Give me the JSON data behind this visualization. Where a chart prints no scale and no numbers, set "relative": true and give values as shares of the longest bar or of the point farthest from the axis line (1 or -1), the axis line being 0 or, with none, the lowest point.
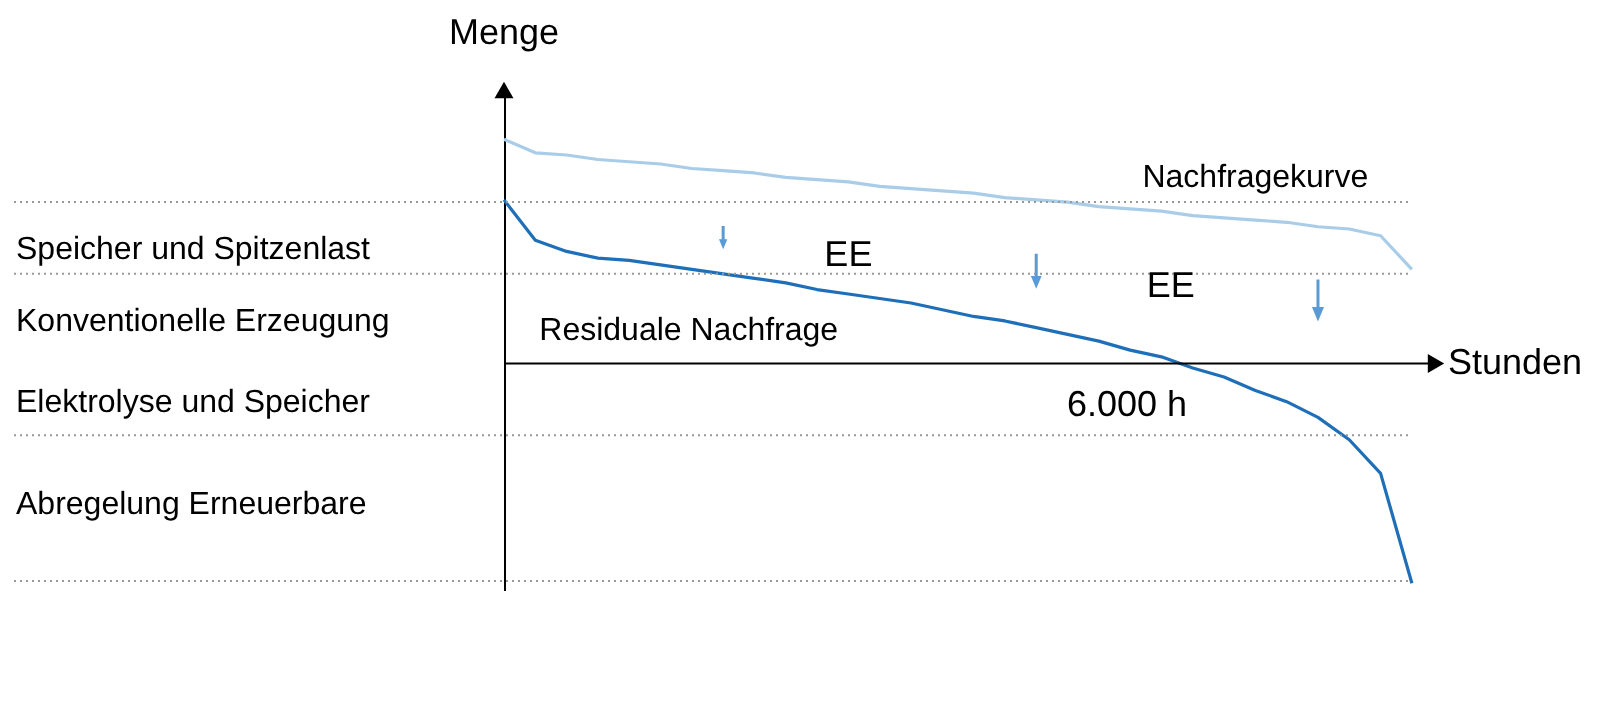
{
  "chart_data": {
    "type": "line",
    "relative": true,
    "xlabel": "Stunden",
    "ylabel": "Menge",
    "tick_labels": false,
    "categories": [
      null,
      null,
      null,
      null,
      null,
      null,
      null,
      null,
      null,
      null,
      null,
      null,
      null,
      null,
      null,
      null,
      null,
      null,
      null,
      null,
      null,
      null,
      null,
      null,
      null,
      null,
      null,
      null,
      null,
      null
    ],
    "series": [
      {
        "name": "Nachfragekurve",
        "color": "#a9cde8",
        "values": [
          1.0,
          0.94,
          0.93,
          0.91,
          0.9,
          0.89,
          0.87,
          0.86,
          0.85,
          0.83,
          0.82,
          0.81,
          0.79,
          0.78,
          0.77,
          0.76,
          0.74,
          0.73,
          0.72,
          0.7,
          0.69,
          0.68,
          0.66,
          0.65,
          0.64,
          0.63,
          0.61,
          0.6,
          0.57,
          0.42
        ]
      },
      {
        "name": "Residuale Nachfrage",
        "color": "#1f6fb8",
        "values": [
          0.73,
          0.55,
          0.5,
          0.47,
          0.46,
          0.44,
          0.42,
          0.4,
          0.38,
          0.36,
          0.33,
          0.31,
          0.29,
          0.27,
          0.24,
          0.21,
          0.19,
          0.16,
          0.13,
          0.1,
          0.06,
          0.03,
          -0.02,
          -0.06,
          -0.12,
          -0.17,
          -0.24,
          -0.34,
          -0.49,
          -0.98
        ]
      }
    ],
    "ref_lines": [
      {
        "axis": "y",
        "value": 0.72,
        "color": "#999999",
        "line_style": "dotted"
      },
      {
        "axis": "y",
        "value": 0.4,
        "color": "#999999",
        "line_style": "dotted"
      },
      {
        "axis": "y",
        "value": -0.32,
        "color": "#999999",
        "line_style": "dotted"
      },
      {
        "axis": "y",
        "value": -0.97,
        "color": "#999999",
        "line_style": "dotted"
      }
    ],
    "annotations": [
      "EE",
      "EE",
      "6.000 h",
      "Speicher und Spitzenlast",
      "Konventionelle Erzeugung",
      "Elektrolyse und Speicher",
      "Abregelung Erneuerbare"
    ]
  }
}
